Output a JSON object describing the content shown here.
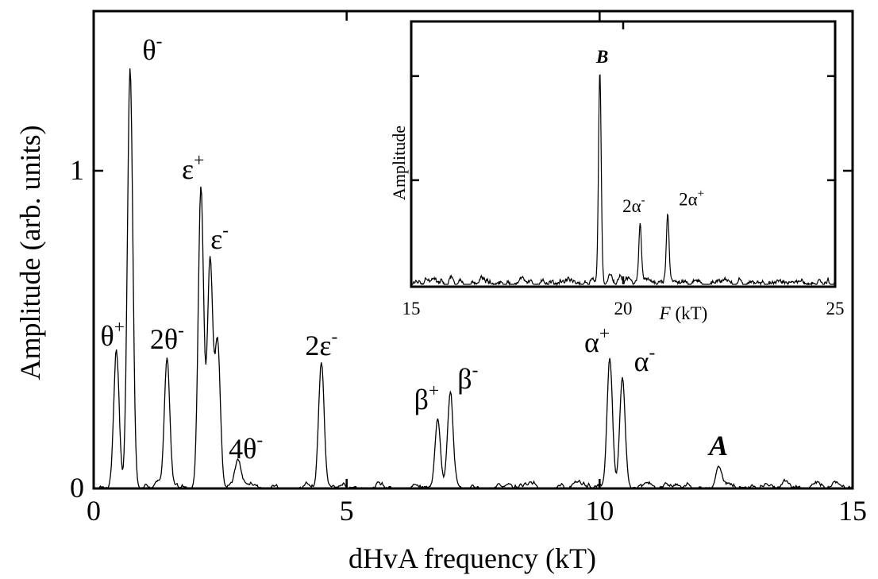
{
  "chart_data": [
    {
      "type": "line",
      "title": "",
      "xlabel": "dHvA frequency (kT)",
      "ylabel": "Amplitude (arb. units)",
      "xlim": [
        0,
        15
      ],
      "ylim": [
        0,
        1.0
      ],
      "x_ticks": [
        0,
        5,
        10,
        15
      ],
      "x_tick_labels": [
        "0",
        "5",
        "10",
        "15"
      ],
      "y_ticks": [
        0,
        1
      ],
      "y_tick_labels": [
        "0",
        "1"
      ],
      "grid": false,
      "series": [
        {
          "peaks": [
            {
              "x": 0.45,
              "y": 0.43,
              "label": "θ",
              "sup": "+"
            },
            {
              "x": 0.72,
              "y": 1.32,
              "label": "θ",
              "sup": "-"
            },
            {
              "x": 1.45,
              "y": 0.41,
              "label": "2θ",
              "sup": "-"
            },
            {
              "x": 2.12,
              "y": 0.95,
              "label": "ε",
              "sup": "+"
            },
            {
              "x": 2.3,
              "y": 0.72,
              "label": "ε",
              "sup": "-"
            },
            {
              "x": 2.45,
              "y": 0.46,
              "label": "",
              "sup": ""
            },
            {
              "x": 2.85,
              "y": 0.07,
              "label": "4θ",
              "sup": "-"
            },
            {
              "x": 4.5,
              "y": 0.39,
              "label": "2ε",
              "sup": "-"
            },
            {
              "x": 6.8,
              "y": 0.22,
              "label": "β",
              "sup": "+"
            },
            {
              "x": 7.05,
              "y": 0.29,
              "label": "β",
              "sup": "-"
            },
            {
              "x": 10.2,
              "y": 0.41,
              "label": "α",
              "sup": "+"
            },
            {
              "x": 10.45,
              "y": 0.35,
              "label": "α",
              "sup": "-"
            },
            {
              "x": 12.35,
              "y": 0.07,
              "label": "A",
              "sup": ""
            }
          ]
        }
      ]
    },
    {
      "type": "line",
      "title": "",
      "xlabel_italic": "F",
      "xlabel_rest": " (kT)",
      "ylabel": "Amplitude",
      "xlim": [
        15,
        25
      ],
      "ylim": [
        0,
        1.0
      ],
      "x_ticks": [
        15,
        20,
        25
      ],
      "x_tick_labels": [
        "15",
        "20",
        "25"
      ],
      "grid": false,
      "series": [
        {
          "peaks": [
            {
              "x": 19.45,
              "y": 0.93,
              "label": "B",
              "sup": ""
            },
            {
              "x": 20.4,
              "y": 0.27,
              "label": "2α",
              "sup": "-"
            },
            {
              "x": 21.05,
              "y": 0.3,
              "label": "2α",
              "sup": "+"
            }
          ]
        }
      ]
    }
  ]
}
